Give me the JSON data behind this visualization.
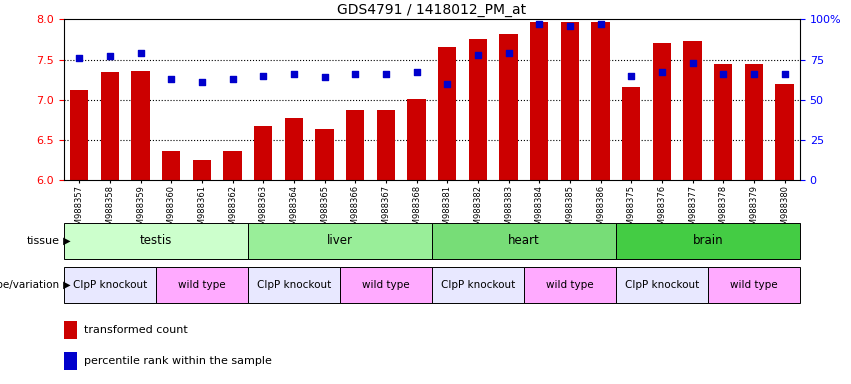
{
  "title": "GDS4791 / 1418012_PM_at",
  "samples": [
    "GSM988357",
    "GSM988358",
    "GSM988359",
    "GSM988360",
    "GSM988361",
    "GSM988362",
    "GSM988363",
    "GSM988364",
    "GSM988365",
    "GSM988366",
    "GSM988367",
    "GSM988368",
    "GSM988381",
    "GSM988382",
    "GSM988383",
    "GSM988384",
    "GSM988385",
    "GSM988386",
    "GSM988375",
    "GSM988376",
    "GSM988377",
    "GSM988378",
    "GSM988379",
    "GSM988380"
  ],
  "bar_values": [
    7.12,
    7.35,
    7.36,
    6.36,
    6.25,
    6.36,
    6.68,
    6.78,
    6.64,
    6.88,
    6.88,
    7.01,
    7.65,
    7.75,
    7.82,
    7.97,
    7.97,
    7.97,
    7.16,
    7.7,
    7.73,
    7.44,
    7.44,
    7.2
  ],
  "percentile_values": [
    76,
    77,
    79,
    63,
    61,
    63,
    65,
    66,
    64,
    66,
    66,
    67,
    60,
    78,
    79,
    97,
    96,
    97,
    65,
    67,
    73,
    66,
    66,
    66
  ],
  "bar_color": "#cc0000",
  "dot_color": "#0000cc",
  "ylim_left": [
    6,
    8
  ],
  "ylim_right": [
    0,
    100
  ],
  "yticks_left": [
    6,
    6.5,
    7,
    7.5,
    8
  ],
  "yticks_right": [
    0,
    25,
    50,
    75,
    100
  ],
  "tissue_groups": [
    {
      "label": "testis",
      "start": 0,
      "end": 6,
      "color": "#ccffcc"
    },
    {
      "label": "liver",
      "start": 6,
      "end": 12,
      "color": "#99ee99"
    },
    {
      "label": "heart",
      "start": 12,
      "end": 18,
      "color": "#77dd77"
    },
    {
      "label": "brain",
      "start": 18,
      "end": 24,
      "color": "#44cc44"
    }
  ],
  "genotype_groups": [
    {
      "label": "ClpP knockout",
      "start": 0,
      "end": 3,
      "color": "#e8e8ff"
    },
    {
      "label": "wild type",
      "start": 3,
      "end": 6,
      "color": "#ffaaff"
    },
    {
      "label": "ClpP knockout",
      "start": 6,
      "end": 9,
      "color": "#e8e8ff"
    },
    {
      "label": "wild type",
      "start": 9,
      "end": 12,
      "color": "#ffaaff"
    },
    {
      "label": "ClpP knockout",
      "start": 12,
      "end": 15,
      "color": "#e8e8ff"
    },
    {
      "label": "wild type",
      "start": 15,
      "end": 18,
      "color": "#ffaaff"
    },
    {
      "label": "ClpP knockout",
      "start": 18,
      "end": 21,
      "color": "#e8e8ff"
    },
    {
      "label": "wild type",
      "start": 21,
      "end": 24,
      "color": "#ffaaff"
    }
  ],
  "background_color": "#ffffff"
}
